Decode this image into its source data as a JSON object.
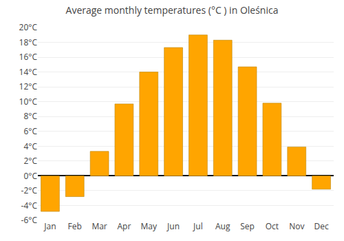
{
  "chart_data": {
    "type": "bar",
    "title": "Average monthly temperatures (°C ) in Oleśnica",
    "categories": [
      "Jan",
      "Feb",
      "Mar",
      "Apr",
      "May",
      "Jun",
      "Jul",
      "Aug",
      "Sep",
      "Oct",
      "Nov",
      "Dec"
    ],
    "values": [
      -4.8,
      -2.8,
      3.3,
      9.7,
      14.0,
      17.3,
      19.0,
      18.3,
      14.7,
      9.8,
      3.9,
      -1.8
    ],
    "color": "#FFA500",
    "ylim": [
      -6,
      20
    ],
    "yticks": [
      {
        "value": -6,
        "label": "-6°C"
      },
      {
        "value": -4,
        "label": "-4°C"
      },
      {
        "value": -2,
        "label": "-2°C"
      },
      {
        "value": 0,
        "label": "0°C"
      },
      {
        "value": 2,
        "label": "2°C"
      },
      {
        "value": 4,
        "label": "4°C"
      },
      {
        "value": 6,
        "label": "6°C"
      },
      {
        "value": 8,
        "label": "8°C"
      },
      {
        "value": 10,
        "label": "10°C"
      },
      {
        "value": 12,
        "label": "12°C"
      },
      {
        "value": 14,
        "label": "14°C"
      },
      {
        "value": 16,
        "label": "16°C"
      },
      {
        "value": 18,
        "label": "18°C"
      },
      {
        "value": 20,
        "label": "20°C"
      }
    ],
    "grid": true
  }
}
